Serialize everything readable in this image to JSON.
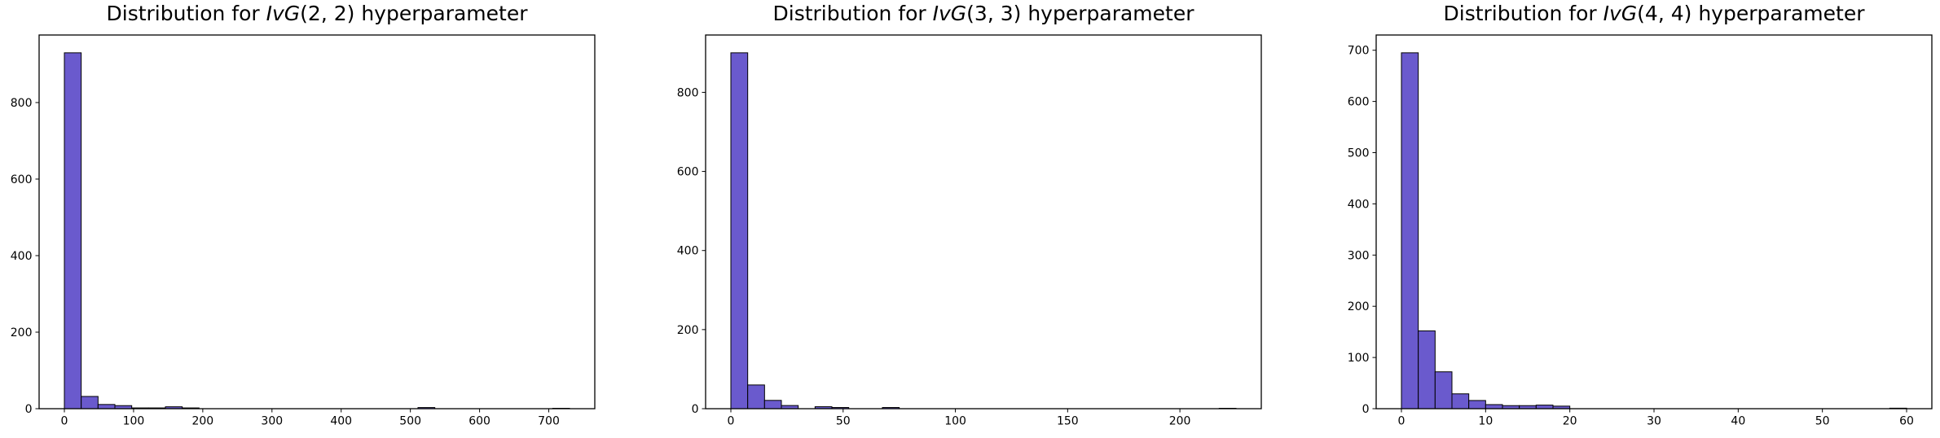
{
  "figure": {
    "background_color": "#ffffff",
    "text_color": "#000000"
  },
  "chart_data": [
    {
      "type": "bar",
      "subtype": "histogram",
      "title": "Distribution for IvG(2, 2) hyperparameter",
      "title_parts": {
        "prefix": "Distribution for ",
        "math_italic": "IvG",
        "args": "(2, 2)",
        "suffix": " hyperparameter"
      },
      "xlabel": "",
      "ylabel": "",
      "bin_start": 0,
      "bin_width": 24.333,
      "values": [
        930,
        32,
        11,
        8,
        2,
        2,
        5,
        2,
        0,
        0,
        0,
        0,
        0,
        0,
        0,
        0,
        0,
        0,
        0,
        0,
        0,
        3,
        0,
        0,
        0,
        0,
        0,
        0,
        0,
        1
      ],
      "xlim": [
        -36.5,
        766.5
      ],
      "ylim": [
        0,
        976.5
      ],
      "xticks": [
        0,
        100,
        200,
        300,
        400,
        500,
        600,
        700
      ],
      "yticks": [
        0,
        200,
        400,
        600,
        800
      ],
      "grid": false,
      "legend": "none",
      "bar_color": "#6A5ACD",
      "bar_edge_color": "#000000"
    },
    {
      "type": "bar",
      "subtype": "histogram",
      "title": "Distribution for IvG(3, 3) hyperparameter",
      "title_parts": {
        "prefix": "Distribution for ",
        "math_italic": "IvG",
        "args": "(3, 3)",
        "suffix": " hyperparameter"
      },
      "xlabel": "",
      "ylabel": "",
      "bin_start": 0,
      "bin_width": 7.5,
      "values": [
        900,
        60,
        21,
        8,
        0,
        5,
        3,
        0,
        0,
        3,
        0,
        0,
        0,
        0,
        0,
        0,
        0,
        0,
        0,
        0,
        0,
        0,
        0,
        0,
        0,
        0,
        0,
        0,
        0,
        1
      ],
      "xlim": [
        -11.25,
        236.25
      ],
      "ylim": [
        0,
        945
      ],
      "xticks": [
        0,
        50,
        100,
        150,
        200
      ],
      "yticks": [
        0,
        200,
        400,
        600,
        800
      ],
      "grid": false,
      "legend": "none",
      "bar_color": "#6A5ACD",
      "bar_edge_color": "#000000"
    },
    {
      "type": "bar",
      "subtype": "histogram",
      "title": "Distribution for IvG(4, 4) hyperparameter",
      "title_parts": {
        "prefix": "Distribution for ",
        "math_italic": "IvG",
        "args": "(4, 4)",
        "suffix": " hyperparameter"
      },
      "xlabel": "",
      "ylabel": "",
      "bin_start": 0,
      "bin_width": 2,
      "values": [
        695,
        152,
        72,
        29,
        16,
        8,
        6,
        6,
        7,
        5,
        0,
        0,
        0,
        0,
        0,
        0,
        0,
        0,
        0,
        0,
        0,
        0,
        0,
        0,
        0,
        0,
        0,
        0,
        0,
        1
      ],
      "xlim": [
        -3,
        63
      ],
      "ylim": [
        0,
        729.75
      ],
      "xticks": [
        0,
        10,
        20,
        30,
        40,
        50,
        60
      ],
      "yticks": [
        0,
        100,
        200,
        300,
        400,
        500,
        600,
        700
      ],
      "grid": false,
      "legend": "none",
      "bar_color": "#6A5ACD",
      "bar_edge_color": "#000000"
    }
  ]
}
